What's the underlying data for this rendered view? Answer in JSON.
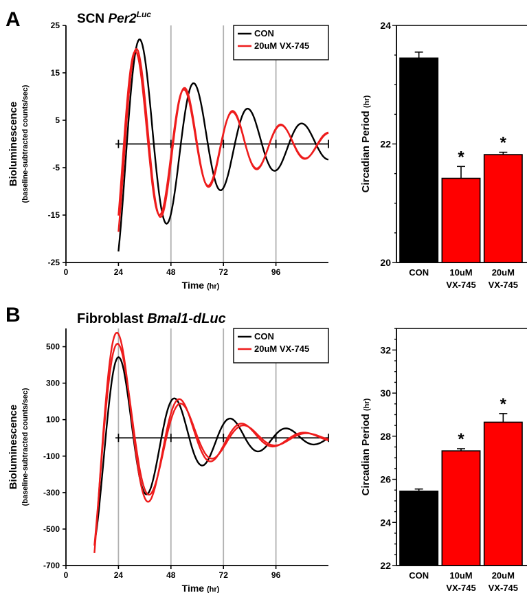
{
  "panels": {
    "A": {
      "letter": "A",
      "title_plain": "SCN ",
      "title_italic": "Per2",
      "title_sup": "Luc"
    },
    "B": {
      "letter": "B",
      "title_plain": "Fibroblast ",
      "title_italic": "Bmal1-dLuc"
    }
  },
  "chart_data": [
    {
      "id": "A-trace",
      "type": "line",
      "xlabel": "Time",
      "xlabel_unit": "(hr)",
      "ylabel": "Bioluminescence",
      "ylabel_sub": "(baseline-subtracted counts/sec)",
      "xlim": [
        0,
        120
      ],
      "ylim": [
        -25,
        25
      ],
      "xticks": [
        0,
        24,
        48,
        72,
        96
      ],
      "yticks": [
        25,
        15,
        5,
        -5,
        -15,
        -25
      ],
      "vlines": [
        48,
        72,
        96
      ],
      "zero_line": true,
      "legend_position": "top-right",
      "series": [
        {
          "name": "CON",
          "color": "#000000",
          "start": 24,
          "end": 120,
          "amp": 22,
          "period": 24.7,
          "peak": 34,
          "decay": 0.022,
          "offset": 0
        },
        {
          "name": "20uM VX-745",
          "color": "#ee1c1c",
          "start": 24,
          "end": 120,
          "amp": 19.5,
          "period": 22.2,
          "peak": 32,
          "decay": 0.024,
          "offset": 0
        },
        {
          "color": "#ee1c1c",
          "start": 24,
          "end": 120,
          "amp": 20,
          "period": 22.0,
          "peak": 32.5,
          "decay": 0.024,
          "offset": 0
        }
      ]
    },
    {
      "id": "A-period",
      "type": "bar",
      "ylabel": "Circadian Period",
      "ylabel_unit": "(hr)",
      "ylim": [
        20,
        24
      ],
      "yticks": [
        20,
        22,
        24
      ],
      "categories": [
        "CON",
        "10uM VX-745",
        "20uM VX-745"
      ],
      "category_lines": [
        [
          "CON"
        ],
        [
          "10uM",
          "VX-745"
        ],
        [
          "20uM",
          "VX-745"
        ]
      ],
      "values": [
        23.45,
        21.42,
        21.82
      ],
      "errors": [
        0.1,
        0.2,
        0.04
      ],
      "colors": [
        "#000000",
        "#ff0000",
        "#ff0000"
      ],
      "significance": [
        "",
        "*",
        "*"
      ]
    },
    {
      "id": "B-trace",
      "type": "line",
      "xlabel": "Time",
      "xlabel_unit": "(hr)",
      "ylabel": "Bioluminescence",
      "ylabel_sub": "(baseline-subtracted counts/sec)",
      "xlim": [
        0,
        120
      ],
      "ylim": [
        -700,
        600
      ],
      "xticks": [
        0,
        24,
        48,
        72,
        96
      ],
      "yticks": [
        500,
        300,
        100,
        -100,
        -300,
        -500,
        -700
      ],
      "vlines": [
        24,
        48,
        72,
        96
      ],
      "zero_line": true,
      "legend_position": "top-right",
      "series": [
        {
          "name": "CON",
          "color": "#000000",
          "start": 13.5,
          "end": 120,
          "amp": 440,
          "period": 25.5,
          "peak": 24.5,
          "decay": 0.028,
          "offset": 0
        },
        {
          "name": "20uM VX-745",
          "color": "#ee1c1c",
          "start": 13,
          "end": 120,
          "amp": 570,
          "period": 28.5,
          "peak": 24,
          "decay": 0.035,
          "offset": 0
        },
        {
          "color": "#ee1c1c",
          "start": 13,
          "end": 120,
          "amp": 510,
          "period": 28.8,
          "peak": 24.3,
          "decay": 0.035,
          "offset": 0
        }
      ]
    },
    {
      "id": "B-period",
      "type": "bar",
      "ylabel": "Circadian Period",
      "ylabel_unit": "(hr)",
      "ylim": [
        22,
        33
      ],
      "yticks": [
        22,
        24,
        26,
        28,
        30,
        32
      ],
      "categories": [
        "CON",
        "10uM VX-745",
        "20uM VX-745"
      ],
      "category_lines": [
        [
          "CON"
        ],
        [
          "10uM",
          "VX-745"
        ],
        [
          "20uM",
          "VX-745"
        ]
      ],
      "values": [
        25.45,
        27.32,
        28.65
      ],
      "errors": [
        0.1,
        0.1,
        0.4
      ],
      "colors": [
        "#000000",
        "#ff0000",
        "#ff0000"
      ],
      "significance": [
        "",
        "*",
        "*"
      ]
    }
  ]
}
